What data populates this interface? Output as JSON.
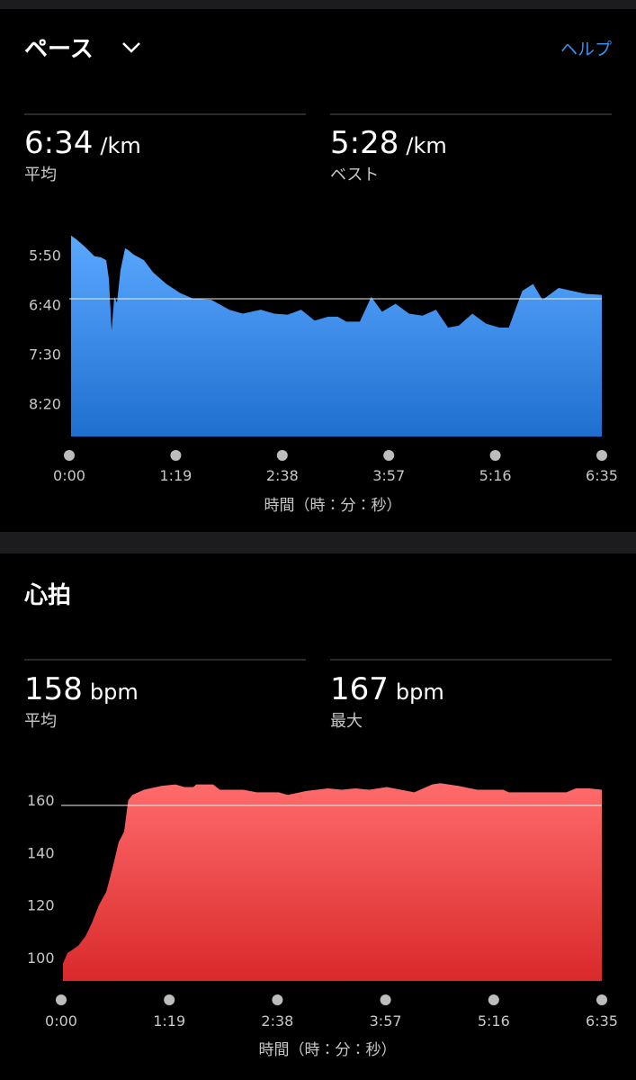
{
  "pace_section": {
    "title": "ペース",
    "help": "ヘルプ",
    "stats": [
      {
        "value": "6:34",
        "unit": "/km",
        "label": "平均"
      },
      {
        "value": "5:28",
        "unit": "/km",
        "label": "ベスト"
      }
    ]
  },
  "heart_section": {
    "title": "心拍",
    "stats": [
      {
        "value": "158",
        "unit": "bpm",
        "label": "平均"
      },
      {
        "value": "167",
        "unit": "bpm",
        "label": "最大"
      }
    ]
  },
  "chart_data": [
    {
      "type": "area",
      "color": "#4a9cf5",
      "y_reversed": true,
      "reference_line": 394,
      "x_label": "時間（時：分：秒）",
      "x": [
        1.3,
        5.3,
        12,
        18.7,
        23.4,
        27.4,
        29.4,
        31.4,
        33.4,
        35.4,
        38,
        41.4,
        44,
        47.4,
        55.4,
        62,
        72,
        82,
        92,
        105.4,
        118.7,
        128.7,
        142,
        152,
        162,
        172,
        182,
        192,
        199,
        205.5,
        215.5,
        224,
        232,
        242,
        252,
        262,
        272,
        281,
        289,
        299,
        309,
        319,
        326,
        336,
        344,
        351,
        363,
        383,
        395
      ],
      "values": [
        330,
        334,
        342,
        351,
        352,
        355,
        374,
        426,
        392,
        398,
        365,
        343,
        345,
        349,
        355,
        367,
        379,
        388,
        394,
        395,
        405,
        409,
        405,
        409,
        410,
        405,
        416,
        412,
        412,
        417,
        417,
        392,
        407,
        399,
        409,
        411,
        405,
        423,
        421,
        409,
        419,
        423,
        423,
        386,
        379,
        395,
        383,
        389,
        390
      ],
      "xlim": [
        0,
        395
      ],
      "xticks": [
        {
          "value": 0,
          "label": "0:00"
        },
        {
          "value": 79,
          "label": "1:19"
        },
        {
          "value": 158,
          "label": "2:38"
        },
        {
          "value": 237,
          "label": "3:57"
        },
        {
          "value": 316,
          "label": "5:16"
        },
        {
          "value": 395,
          "label": "6:35"
        }
      ],
      "ylim": [
        324,
        533
      ],
      "yticks": [
        {
          "value": 350,
          "label": "5:50"
        },
        {
          "value": 400,
          "label": "6:40"
        },
        {
          "value": 450,
          "label": "7:30"
        },
        {
          "value": 500,
          "label": "8:20"
        }
      ]
    },
    {
      "type": "area",
      "color": "#f25a5a",
      "y_reversed": false,
      "reference_line": 158,
      "x_label": "時間（時：分：秒）",
      "x": [
        1.3,
        4.6,
        7.9,
        12.5,
        17.7,
        22.3,
        27.6,
        32.9,
        37.5,
        42,
        46,
        49,
        52,
        60.5,
        73.6,
        83.5,
        90,
        96.6,
        98.6,
        111,
        116,
        133,
        143,
        159,
        165.6,
        179,
        195,
        205,
        215,
        225,
        238,
        258,
        271,
        277,
        290,
        304,
        323,
        327,
        369,
        376,
        386,
        395
      ],
      "values": [
        97.6,
        101.7,
        102.8,
        104.5,
        108,
        113,
        120,
        125,
        134,
        144,
        148,
        160,
        162,
        164,
        165.5,
        166,
        165,
        165,
        166,
        166,
        164,
        164,
        163,
        163,
        162,
        163.5,
        164.5,
        164,
        164.5,
        164,
        165,
        163,
        166,
        166.5,
        165.5,
        164,
        164,
        163,
        163,
        164.5,
        164.5,
        164
      ],
      "xlim": [
        0,
        395
      ],
      "xticks": [
        {
          "value": 0,
          "label": "0:00"
        },
        {
          "value": 79,
          "label": "1:19"
        },
        {
          "value": 158,
          "label": "2:38"
        },
        {
          "value": 237,
          "label": "3:57"
        },
        {
          "value": 316,
          "label": "5:16"
        },
        {
          "value": 395,
          "label": "6:35"
        }
      ],
      "ylim": [
        91,
        170
      ],
      "yticks": [
        100,
        120,
        140,
        160
      ]
    }
  ]
}
